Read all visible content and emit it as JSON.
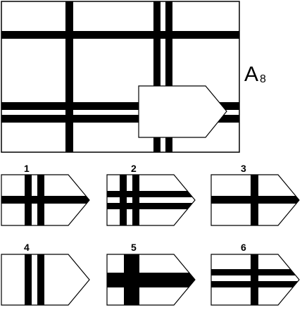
{
  "puzzle": {
    "code_letter": "A",
    "code_number": "8"
  },
  "options": [
    {
      "number": "1",
      "pattern": "two-vertical-one-horizontal"
    },
    {
      "number": "2",
      "pattern": "two-vertical-two-horizontal"
    },
    {
      "number": "3",
      "pattern": "one-vertical-one-horizontal"
    },
    {
      "number": "4",
      "pattern": "two-vertical-only"
    },
    {
      "number": "5",
      "pattern": "thick-cross"
    },
    {
      "number": "6",
      "pattern": "one-vertical-two-horizontal"
    }
  ]
}
